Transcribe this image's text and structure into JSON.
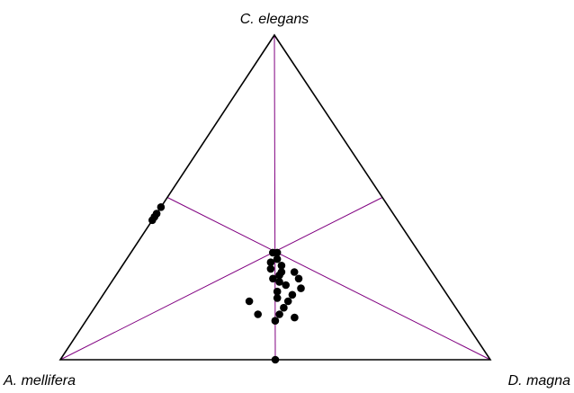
{
  "chart_data": {
    "type": "ternary-scatter",
    "vertices": {
      "top": "C. elegans",
      "left": "A. mellifera",
      "right": "D. magna"
    },
    "grid": "medians",
    "colors": {
      "frame": "#000000",
      "median_lines": "#800080",
      "points": "#000000"
    },
    "points": [
      {
        "top": 0.47,
        "left": 0.53,
        "right": 0.0
      },
      {
        "top": 0.45,
        "left": 0.55,
        "right": 0.0
      },
      {
        "top": 0.44,
        "left": 0.56,
        "right": 0.0
      },
      {
        "top": 0.43,
        "left": 0.57,
        "right": 0.0
      },
      {
        "top": 0.0,
        "left": 0.5,
        "right": 0.5
      },
      {
        "top": 0.33,
        "left": 0.33,
        "right": 0.34
      },
      {
        "top": 0.33,
        "left": 0.34,
        "right": 0.33
      },
      {
        "top": 0.31,
        "left": 0.34,
        "right": 0.35
      },
      {
        "top": 0.29,
        "left": 0.34,
        "right": 0.37
      },
      {
        "top": 0.28,
        "left": 0.37,
        "right": 0.35
      },
      {
        "top": 0.27,
        "left": 0.35,
        "right": 0.38
      },
      {
        "top": 0.26,
        "left": 0.36,
        "right": 0.38
      },
      {
        "top": 0.25,
        "left": 0.38,
        "right": 0.37
      },
      {
        "top": 0.24,
        "left": 0.37,
        "right": 0.39
      },
      {
        "top": 0.23,
        "left": 0.36,
        "right": 0.41
      },
      {
        "top": 0.27,
        "left": 0.32,
        "right": 0.41
      },
      {
        "top": 0.25,
        "left": 0.32,
        "right": 0.43
      },
      {
        "top": 0.21,
        "left": 0.39,
        "right": 0.4
      },
      {
        "top": 0.19,
        "left": 0.4,
        "right": 0.41
      },
      {
        "top": 0.2,
        "left": 0.36,
        "right": 0.44
      },
      {
        "top": 0.18,
        "left": 0.38,
        "right": 0.44
      },
      {
        "top": 0.16,
        "left": 0.4,
        "right": 0.44
      },
      {
        "top": 0.14,
        "left": 0.42,
        "right": 0.44
      },
      {
        "top": 0.18,
        "left": 0.47,
        "right": 0.35
      },
      {
        "top": 0.14,
        "left": 0.47,
        "right": 0.39
      },
      {
        "top": 0.12,
        "left": 0.44,
        "right": 0.44
      },
      {
        "top": 0.13,
        "left": 0.39,
        "right": 0.48
      },
      {
        "top": 0.3,
        "left": 0.36,
        "right": 0.34
      },
      {
        "top": 0.22,
        "left": 0.33,
        "right": 0.45
      }
    ]
  }
}
